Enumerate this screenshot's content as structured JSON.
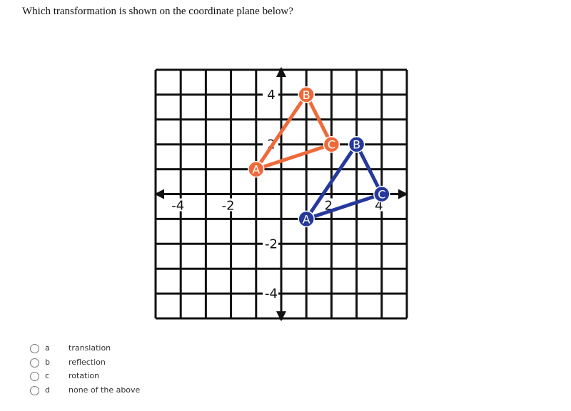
{
  "question": "Which transformation is shown on the coordinate plane below?",
  "plane": {
    "xlim": [
      -5,
      5
    ],
    "ylim": [
      -5,
      5
    ],
    "xticks": [
      -4,
      -2,
      2,
      4
    ],
    "yticks": [
      4,
      2,
      -2,
      -4
    ],
    "triangles": [
      {
        "color": "#ee6a3b",
        "vertices": [
          {
            "label": "A",
            "x": -1,
            "y": 1
          },
          {
            "label": "B",
            "x": 1,
            "y": 4
          },
          {
            "label": "C",
            "x": 2,
            "y": 2
          }
        ]
      },
      {
        "color": "#26399b",
        "vertices": [
          {
            "label": "A",
            "x": 1,
            "y": -1
          },
          {
            "label": "B",
            "x": 3,
            "y": 2
          },
          {
            "label": "C",
            "x": 4,
            "y": 0
          }
        ]
      }
    ]
  },
  "options": [
    {
      "letter": "a",
      "text": "translation"
    },
    {
      "letter": "b",
      "text": "reflection"
    },
    {
      "letter": "c",
      "text": "rotation"
    },
    {
      "letter": "d",
      "text": "none of the above"
    }
  ]
}
